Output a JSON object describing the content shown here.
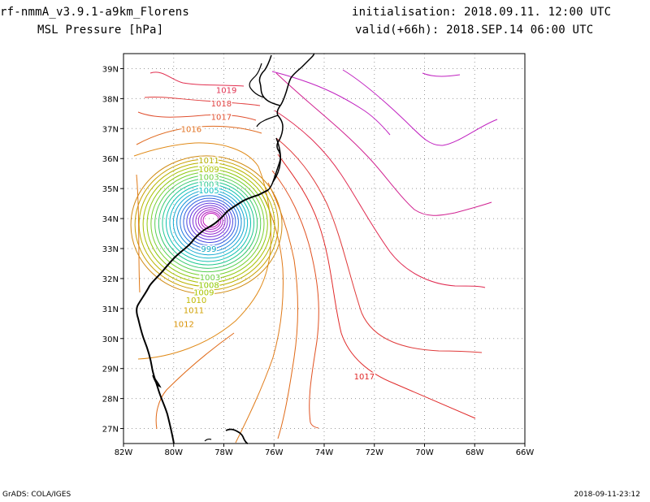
{
  "header": {
    "title_line1": "rf-nmmA_v3.9.1-a9km_Florens",
    "title_line2": "MSL Pressure [hPa]",
    "init_line": "initialisation: 2018.09.11.  12:00 UTC",
    "valid_line": "valid(+66h): 2018.SEP.14 06:00 UTC"
  },
  "footer": {
    "left": "GrADS: COLA/IGES",
    "right": "2018-09-11-23:12"
  },
  "map": {
    "lon_range": [
      -82,
      -66
    ],
    "lat_range": [
      26.5,
      39.5
    ],
    "grid": true,
    "lon_ticks": [
      {
        "value": -82,
        "label": "82W"
      },
      {
        "value": -80,
        "label": "80W"
      },
      {
        "value": -78,
        "label": "78W"
      },
      {
        "value": -76,
        "label": "76W"
      },
      {
        "value": -74,
        "label": "74W"
      },
      {
        "value": -72,
        "label": "72W"
      },
      {
        "value": -70,
        "label": "70W"
      },
      {
        "value": -68,
        "label": "68W"
      },
      {
        "value": -66,
        "label": "66W"
      }
    ],
    "lat_ticks": [
      {
        "value": 27,
        "label": "27N"
      },
      {
        "value": 28,
        "label": "28N"
      },
      {
        "value": 29,
        "label": "29N"
      },
      {
        "value": 30,
        "label": "30N"
      },
      {
        "value": 31,
        "label": "31N"
      },
      {
        "value": 32,
        "label": "32N"
      },
      {
        "value": 33,
        "label": "33N"
      },
      {
        "value": 34,
        "label": "34N"
      },
      {
        "value": 35,
        "label": "35N"
      },
      {
        "value": 36,
        "label": "36N"
      },
      {
        "value": 37,
        "label": "37N"
      },
      {
        "value": 38,
        "label": "38N"
      },
      {
        "value": 39,
        "label": "39N"
      }
    ],
    "storm_center": {
      "lon": -78.5,
      "lat": 33.95
    },
    "inner_contour_labels": [
      {
        "text": "1011",
        "lon": -78.6,
        "lat": 35.95,
        "color": "#b5b000"
      },
      {
        "text": "1009",
        "lon": -78.6,
        "lat": 35.65,
        "color": "#a8c400"
      },
      {
        "text": "1003",
        "lon": -78.6,
        "lat": 35.4,
        "color": "#70d040"
      },
      {
        "text": "1003",
        "lon": -78.6,
        "lat": 35.15,
        "color": "#30c890"
      },
      {
        "text": "1005",
        "lon": -78.6,
        "lat": 34.95,
        "color": "#10c0c0"
      },
      {
        "text": "999",
        "lon": -78.6,
        "lat": 33.0,
        "color": "#10a8c0"
      },
      {
        "text": "1003",
        "lon": -78.55,
        "lat": 32.05,
        "color": "#6cd040"
      },
      {
        "text": "1008",
        "lon": -78.6,
        "lat": 31.8,
        "color": "#90c800"
      },
      {
        "text": "1009",
        "lon": -78.8,
        "lat": 31.55,
        "color": "#a8c400"
      },
      {
        "text": "1010",
        "lon": -79.1,
        "lat": 31.3,
        "color": "#c0b800"
      },
      {
        "text": "1011",
        "lon": -79.2,
        "lat": 30.95,
        "color": "#d0a000"
      },
      {
        "text": "1012",
        "lon": -79.6,
        "lat": 30.5,
        "color": "#d89000"
      }
    ],
    "outer_contour_labels": [
      {
        "text": "1019",
        "lon": -77.9,
        "lat": 38.3,
        "color": "#e03050"
      },
      {
        "text": "1018",
        "lon": -78.1,
        "lat": 37.85,
        "color": "#e04040"
      },
      {
        "text": "1017",
        "lon": -78.1,
        "lat": 37.4,
        "color": "#e05030"
      },
      {
        "text": "1016",
        "lon": -79.3,
        "lat": 37.0,
        "color": "#e07020"
      },
      {
        "text": "1017",
        "lon": -72.4,
        "lat": 28.75,
        "color": "#e02828"
      }
    ]
  }
}
